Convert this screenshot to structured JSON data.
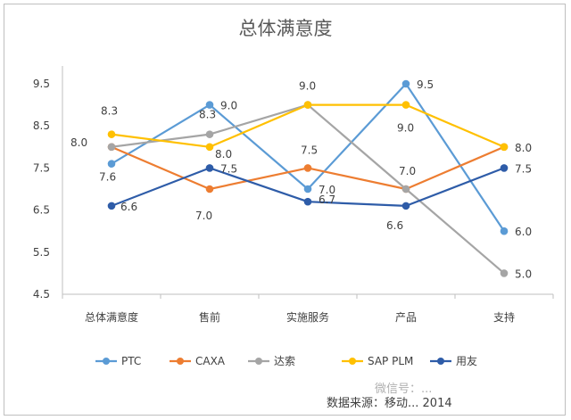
{
  "chart_data": {
    "type": "line",
    "title": "总体满意度",
    "categories": [
      "总体满意度",
      "售前",
      "实施服务",
      "产品",
      "支持"
    ],
    "ylim": [
      4.5,
      9.5
    ],
    "yticks": [
      "9.5",
      "8.5",
      "7.5",
      "6.5",
      "5.5",
      "4.5"
    ],
    "grid": false,
    "legend": "bottom",
    "series": [
      {
        "name": "PTC",
        "color": "#5b9bd5",
        "values": [
          7.6,
          9.0,
          7.0,
          9.5,
          6.0
        ],
        "labels": [
          "7.6",
          "9.0",
          "7.0",
          "9.5",
          "6.0"
        ]
      },
      {
        "name": "CAXA",
        "color": "#ed7d31",
        "values": [
          8.0,
          7.0,
          7.5,
          7.0,
          8.0
        ],
        "labels": [
          "8.0",
          "7.0",
          "7.5",
          "7.0",
          "8.0"
        ]
      },
      {
        "name": "达索",
        "color": "#a5a5a5",
        "values": [
          8.0,
          8.3,
          9.0,
          7.0,
          5.0
        ],
        "labels": [
          "",
          "8.3",
          "",
          "",
          "5.0"
        ]
      },
      {
        "name": "SAP PLM",
        "color": "#ffc000",
        "values": [
          8.3,
          8.0,
          9.0,
          9.0,
          8.0
        ],
        "labels": [
          "8.3",
          "8.0",
          "9.0",
          "9.0",
          ""
        ]
      },
      {
        "name": "用友",
        "color": "#2e5ca8",
        "values": [
          6.6,
          7.5,
          6.7,
          6.6,
          7.5
        ],
        "labels": [
          "6.6",
          "7.5",
          "6.7",
          "6.6",
          "7.5"
        ]
      }
    ],
    "source": "数据来源：移动...  2014",
    "watermark": "微信号：..."
  }
}
